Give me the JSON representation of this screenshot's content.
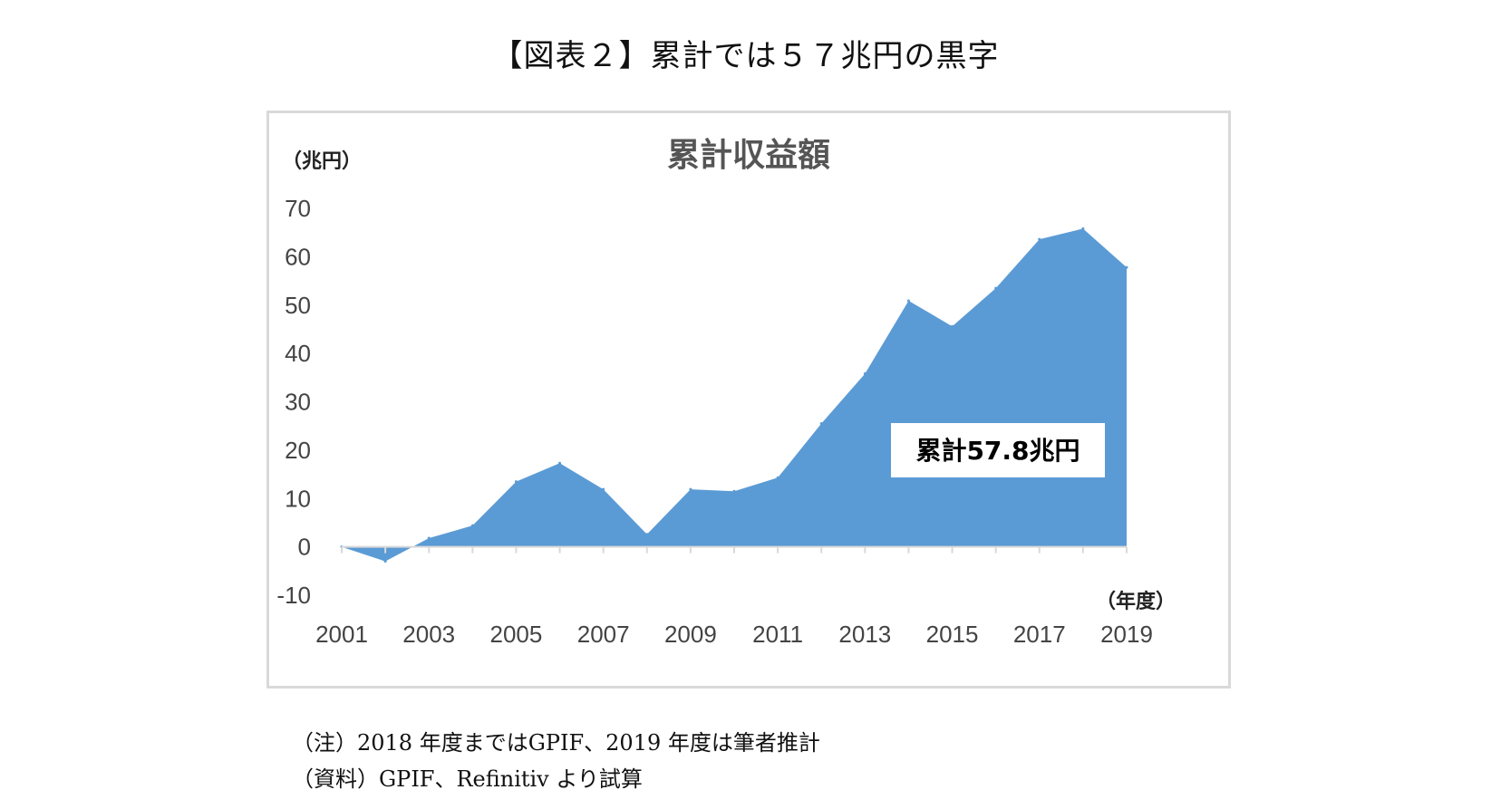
{
  "figure_title": "【図表２】累計では５７兆円の黒字",
  "notes": [
    "（注）2018 年度まではGPIF、2019 年度は筆者推計",
    "（資料）GPIF、Refinitiv より試算"
  ],
  "chart_data": {
    "type": "area",
    "title": "累計収益額",
    "ylabel": "（兆円）",
    "xlabel": "（年度）",
    "ylim": [
      -10,
      70
    ],
    "yticks": [
      70,
      60,
      50,
      40,
      30,
      20,
      10,
      0,
      -10
    ],
    "xticks": [
      "2001",
      "2003",
      "2005",
      "2007",
      "2009",
      "2011",
      "2013",
      "2015",
      "2017",
      "2019"
    ],
    "x": [
      2001,
      2002,
      2003,
      2004,
      2005,
      2006,
      2007,
      2008,
      2009,
      2010,
      2011,
      2012,
      2013,
      2014,
      2015,
      2016,
      2017,
      2018,
      2019
    ],
    "series": [
      {
        "values": [
          0,
          -3,
          1.8,
          4.4,
          13.5,
          17.3,
          11.9,
          2.6,
          11.9,
          11.5,
          14.3,
          25.5,
          35.8,
          50.9,
          45.6,
          53.5,
          63.6,
          65.8,
          57.8
        ],
        "color": "#5b9bd5"
      }
    ],
    "annotation": "累計57.8兆円",
    "fill_color": "#5b9bd5",
    "axis_color": "#d9d9d9",
    "grid": false,
    "legend": "none"
  }
}
